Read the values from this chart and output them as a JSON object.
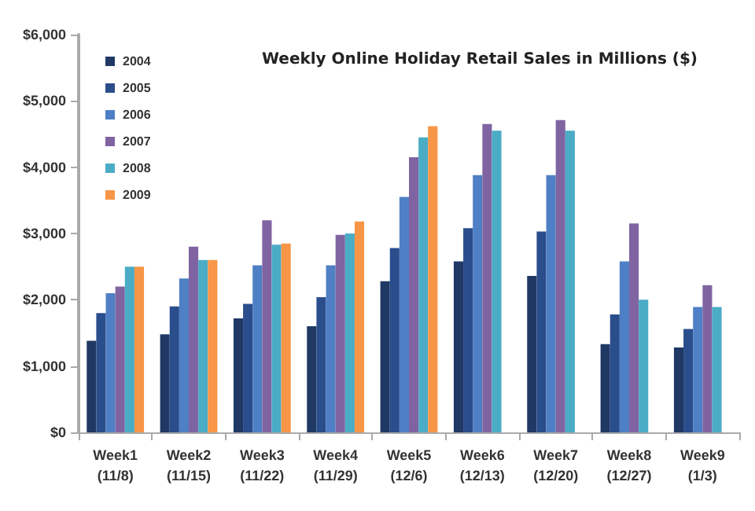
{
  "chart_data": {
    "type": "bar",
    "title": "Weekly Online Holiday Retail Sales in Millions ($)",
    "categories": [
      "Week1\n(11/8)",
      "Week2\n(11/15)",
      "Week3\n(11/22)",
      "Week4\n(11/29)",
      "Week5\n(12/6)",
      "Week6\n(12/13)",
      "Week7\n(12/20)",
      "Week8\n(12/27)",
      "Week9\n(1/3)"
    ],
    "series": [
      {
        "name": "2004",
        "color": "#1f3864",
        "values": [
          1380,
          1480,
          1720,
          1600,
          2280,
          2580,
          2360,
          1330,
          1280
        ]
      },
      {
        "name": "2005",
        "color": "#2a4d8c",
        "values": [
          1800,
          1900,
          1940,
          2040,
          2780,
          3080,
          3030,
          1780,
          1560
        ]
      },
      {
        "name": "2006",
        "color": "#4f7fc4",
        "values": [
          2100,
          2320,
          2520,
          2520,
          3550,
          3880,
          3880,
          2580,
          1890
        ]
      },
      {
        "name": "2007",
        "color": "#8064a2",
        "values": [
          2200,
          2800,
          3200,
          2980,
          4150,
          4650,
          4710,
          3150,
          2220
        ]
      },
      {
        "name": "2008",
        "color": "#4bacc6",
        "values": [
          2500,
          2600,
          2830,
          3000,
          4450,
          4550,
          4550,
          2000,
          1890
        ]
      },
      {
        "name": "2009",
        "color": "#f79646",
        "values": [
          2500,
          2600,
          2850,
          3180,
          4620,
          null,
          null,
          null,
          null
        ]
      }
    ],
    "ylim": [
      0,
      6000
    ],
    "yticks": [
      {
        "value": 0,
        "label": "$0"
      },
      {
        "value": 1000,
        "label": "$1,000"
      },
      {
        "value": 2000,
        "label": "$2,000"
      },
      {
        "value": 3000,
        "label": "$3,000"
      },
      {
        "value": 4000,
        "label": "$4,000"
      },
      {
        "value": 5000,
        "label": "$5,000"
      },
      {
        "value": 6000,
        "label": "$6,000"
      }
    ],
    "grid": false,
    "legend": "top left"
  }
}
